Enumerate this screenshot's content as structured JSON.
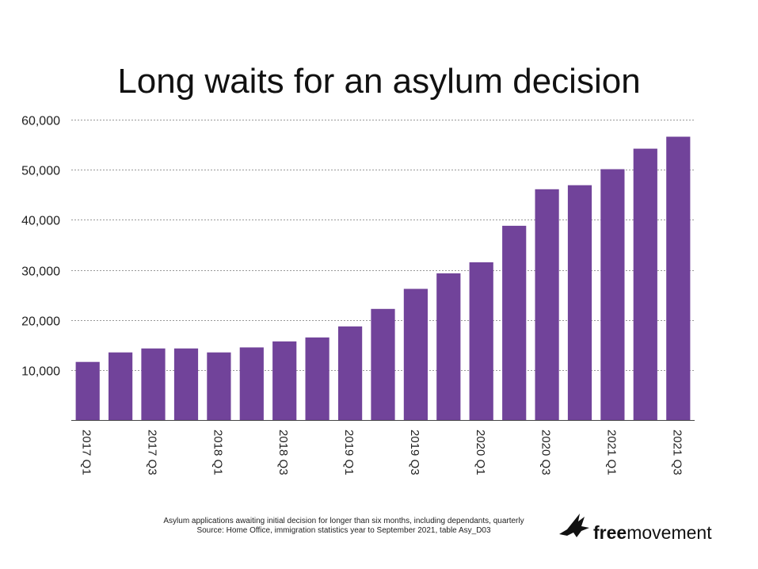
{
  "chart_data": {
    "type": "bar",
    "title": "Long waits for an asylum decision",
    "xlabel": "",
    "ylabel": "",
    "categories": [
      "2017 Q1",
      "2017 Q2",
      "2017 Q3",
      "2017 Q4",
      "2018 Q1",
      "2018 Q2",
      "2018 Q3",
      "2018 Q4",
      "2019 Q1",
      "2019 Q2",
      "2019 Q3",
      "2019 Q4",
      "2020 Q1",
      "2020 Q2",
      "2020 Q3",
      "2020 Q4",
      "2021 Q1",
      "2021 Q2",
      "2021 Q3"
    ],
    "tick_labels": [
      "2017 Q1",
      "",
      "2017 Q3",
      "",
      "2018 Q1",
      "",
      "2018 Q3",
      "",
      "2019 Q1",
      "",
      "2019 Q3",
      "",
      "2020 Q1",
      "",
      "2020 Q3",
      "",
      "2021 Q1",
      "",
      "2021 Q3"
    ],
    "values": [
      11600,
      13500,
      14300,
      14300,
      13500,
      14500,
      15700,
      16500,
      18700,
      22200,
      26200,
      29300,
      31500,
      38800,
      46100,
      46900,
      50100,
      54200,
      56600
    ],
    "ylim": [
      0,
      60000
    ],
    "yticks": [
      10000,
      20000,
      30000,
      40000,
      50000,
      60000
    ],
    "ytick_labels": [
      "10,000",
      "20,000",
      "30,000",
      "40,000",
      "50,000",
      "60,000"
    ],
    "grid": true,
    "legend": "none",
    "bar_color": "#71439a"
  },
  "footnote": {
    "line1": "Asylum applications awaiting initial decision for longer than six months, including dependants, quarterly",
    "line2": "Source: Home Office, immigration statistics year to September 2021, table Asy_D03"
  },
  "logo": {
    "free": "free",
    "movement": "movement",
    "icon": "bird-icon"
  }
}
